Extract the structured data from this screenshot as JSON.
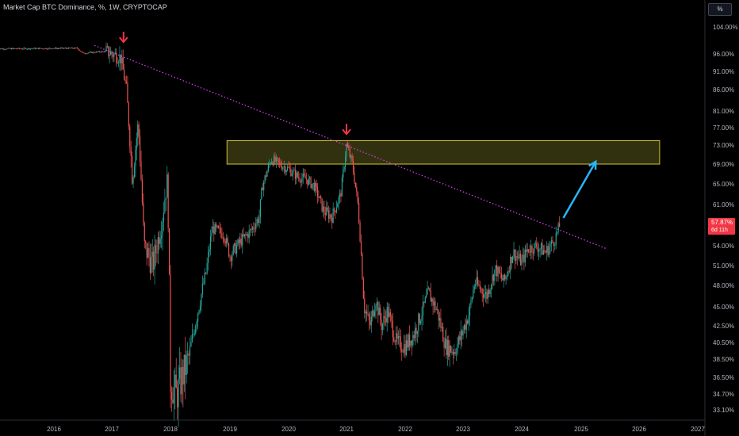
{
  "header": {
    "title": "Market Cap BTC Dominance, %, 1W, CRYPTOCAP"
  },
  "scale_toggle": {
    "label": "%"
  },
  "last_price": {
    "value_label": "57.87%",
    "countdown": "6d 11h"
  },
  "colors": {
    "up": "#26a69a",
    "down": "#ef5350",
    "trendline": "#e040fb",
    "zone_fill": "#3b3a12",
    "zone_border": "#d4c43a",
    "arrow_red": "#f23645",
    "arrow_cyan": "#29b6f6",
    "price_tag": "#f23645"
  },
  "chart_data": {
    "type": "candlestick",
    "y_ticks": [
      "104.00%",
      "96.00%",
      "91.00%",
      "86.00%",
      "81.00%",
      "77.00%",
      "73.00%",
      "69.00%",
      "65.00%",
      "61.00%",
      "57.87%",
      "54.00%",
      "51.00%",
      "48.00%",
      "45.00%",
      "42.50%",
      "40.50%",
      "38.50%",
      "36.50%",
      "34.70%",
      "33.10%"
    ],
    "x_ticks": [
      "2016",
      "2017",
      "2018",
      "2019",
      "2020",
      "2021",
      "2022",
      "2023",
      "2024",
      "2025",
      "2026",
      "2027"
    ],
    "path": [
      [
        2015.0,
        97.5
      ],
      [
        2016.4,
        97.7
      ],
      [
        2016.5,
        96.2
      ],
      [
        2016.9,
        96.8
      ],
      [
        2017.15,
        95.0
      ],
      [
        2017.25,
        86.0
      ],
      [
        2017.35,
        66.0
      ],
      [
        2017.45,
        78.0
      ],
      [
        2017.55,
        54.0
      ],
      [
        2017.7,
        51.0
      ],
      [
        2017.85,
        58.0
      ],
      [
        2017.95,
        66.0
      ],
      [
        2018.0,
        36.0
      ],
      [
        2018.1,
        34.6
      ],
      [
        2018.3,
        38.5
      ],
      [
        2018.45,
        44.0
      ],
      [
        2018.6,
        50.0
      ],
      [
        2018.7,
        57.0
      ],
      [
        2018.9,
        56.0
      ],
      [
        2019.0,
        52.5
      ],
      [
        2019.2,
        55.0
      ],
      [
        2019.35,
        56.5
      ],
      [
        2019.5,
        59.0
      ],
      [
        2019.55,
        64.5
      ],
      [
        2019.7,
        70.0
      ],
      [
        2019.85,
        69.0
      ],
      [
        2020.0,
        68.0
      ],
      [
        2020.15,
        66.5
      ],
      [
        2020.3,
        66.0
      ],
      [
        2020.45,
        64.5
      ],
      [
        2020.6,
        60.0
      ],
      [
        2020.75,
        59.0
      ],
      [
        2020.9,
        63.0
      ],
      [
        2021.0,
        73.0
      ],
      [
        2021.1,
        69.0
      ],
      [
        2021.2,
        60.5
      ],
      [
        2021.3,
        45.0
      ],
      [
        2021.4,
        42.5
      ],
      [
        2021.5,
        46.0
      ],
      [
        2021.6,
        42.5
      ],
      [
        2021.7,
        44.5
      ],
      [
        2021.85,
        40.5
      ],
      [
        2022.0,
        40.0
      ],
      [
        2022.15,
        41.5
      ],
      [
        2022.3,
        44.5
      ],
      [
        2022.4,
        47.0
      ],
      [
        2022.55,
        44.5
      ],
      [
        2022.7,
        40.0
      ],
      [
        2022.85,
        39.5
      ],
      [
        2022.95,
        41.0
      ],
      [
        2023.1,
        44.0
      ],
      [
        2023.2,
        48.5
      ],
      [
        2023.4,
        46.5
      ],
      [
        2023.55,
        50.5
      ],
      [
        2023.7,
        48.5
      ],
      [
        2023.85,
        53.0
      ],
      [
        2024.0,
        51.5
      ],
      [
        2024.1,
        53.5
      ],
      [
        2024.25,
        54.0
      ],
      [
        2024.4,
        53.0
      ],
      [
        2024.55,
        55.0
      ],
      [
        2024.65,
        57.87
      ]
    ],
    "trendline": {
      "start": [
        2016.7,
        98.5
      ],
      "end": [
        2025.45,
        53.5
      ]
    },
    "resistance_zone": {
      "x_range": [
        2018.95,
        2026.35
      ],
      "y_range": [
        69.0,
        74.0
      ]
    },
    "annotations": [
      {
        "type": "arrow-down",
        "x": 2017.2,
        "y": 99.5
      },
      {
        "type": "arrow-down",
        "x": 2021.0,
        "y": 75.5
      },
      {
        "type": "arrow-up-right",
        "from": [
          2024.7,
          58.8
        ],
        "to": [
          2025.25,
          69.5
        ]
      }
    ]
  }
}
